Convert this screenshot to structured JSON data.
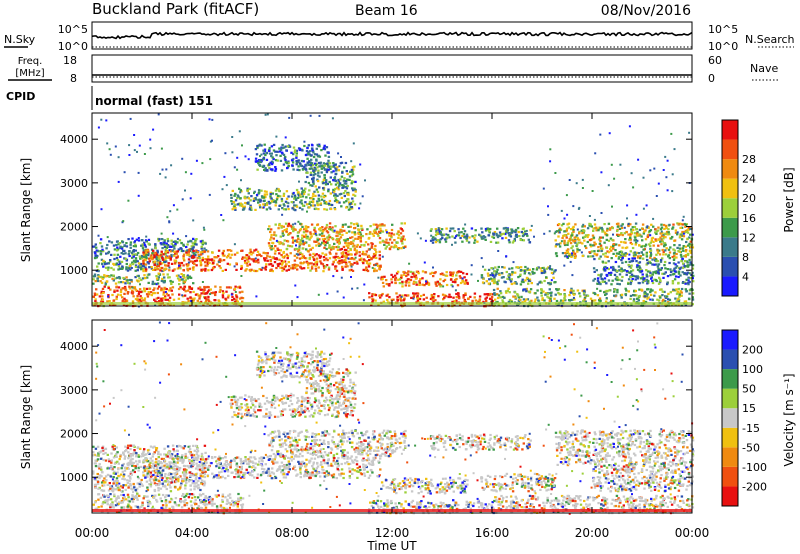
{
  "header": {
    "station": "Buckland Park (fitACF)",
    "beam": "Beam 16",
    "date": "08/Nov/2016"
  },
  "top_panels": {
    "nsky_label": "N.Sky",
    "nsky_ticks": [
      "10^5",
      "10^0"
    ],
    "nsearch_label": "N.Search",
    "nsearch_ticks": [
      "10^5",
      "10^0"
    ],
    "freq_label_1": "Freq.",
    "freq_label_2": "[MHz]",
    "freq_ticks": [
      "18",
      "8"
    ],
    "nave_label": "Nave",
    "nave_ticks": [
      "60",
      "0"
    ],
    "cpid_label": "CPID",
    "cpid_text": "normal (fast) 151"
  },
  "chart_data": [
    {
      "type": "heatmap",
      "name": "power",
      "ylabel": "Slant Range [km]",
      "yticks": [
        1000,
        2000,
        3000,
        4000
      ],
      "ylim": [
        180,
        4600
      ],
      "xlim_hours": [
        0,
        24
      ],
      "colorbar_label": "Power [dB]",
      "colorbar_ticks": [
        "4",
        "8",
        "12",
        "16",
        "20",
        "24",
        "28"
      ],
      "colorbar_colors": [
        "#1a1aff",
        "#2a4fb0",
        "#3a7a8a",
        "#3c9a4a",
        "#9ccf3a",
        "#f0c010",
        "#f08a10",
        "#f05010",
        "#e81010"
      ],
      "bands": [
        {
          "t0": 0.0,
          "t1": 6.0,
          "r0": 200,
          "r1": 650,
          "level": 0.8
        },
        {
          "t0": 0.0,
          "t1": 4.0,
          "r0": 700,
          "r1": 950,
          "level": 0.45
        },
        {
          "t0": 0.0,
          "t1": 3.0,
          "r0": 1000,
          "r1": 1300,
          "level": 0.35
        },
        {
          "t0": 0.0,
          "t1": 4.5,
          "r0": 1300,
          "r1": 1750,
          "level": 0.3
        },
        {
          "t0": 2.0,
          "t1": 11.5,
          "r0": 1000,
          "r1": 1500,
          "level": 0.8
        },
        {
          "t0": 7.0,
          "t1": 12.5,
          "r0": 1500,
          "r1": 2100,
          "level": 0.65
        },
        {
          "t0": 5.5,
          "t1": 10.5,
          "r0": 2400,
          "r1": 2900,
          "level": 0.4
        },
        {
          "t0": 8.5,
          "t1": 10.5,
          "r0": 2900,
          "r1": 3500,
          "level": 0.35
        },
        {
          "t0": 6.5,
          "t1": 9.5,
          "r0": 3300,
          "r1": 3900,
          "level": 0.25
        },
        {
          "t0": 11.0,
          "t1": 16.0,
          "r0": 200,
          "r1": 500,
          "level": 0.85
        },
        {
          "t0": 11.5,
          "t1": 15.0,
          "r0": 650,
          "r1": 1000,
          "level": 0.75
        },
        {
          "t0": 15.5,
          "t1": 18.5,
          "r0": 700,
          "r1": 1100,
          "level": 0.4
        },
        {
          "t0": 13.5,
          "t1": 17.5,
          "r0": 1650,
          "r1": 2000,
          "level": 0.35
        },
        {
          "t0": 16.0,
          "t1": 24.0,
          "r0": 200,
          "r1": 600,
          "level": 0.45
        },
        {
          "t0": 18.5,
          "t1": 24.0,
          "r0": 1300,
          "r1": 2100,
          "level": 0.55
        },
        {
          "t0": 20.0,
          "t1": 24.0,
          "r0": 700,
          "r1": 1300,
          "level": 0.3
        }
      ]
    },
    {
      "type": "heatmap",
      "name": "velocity",
      "xlabel": "Time UT",
      "ylabel": "Slant Range [km]",
      "yticks": [
        1000,
        2000,
        3000,
        4000
      ],
      "ylim": [
        180,
        4600
      ],
      "xlim_hours": [
        0,
        24
      ],
      "xticks": [
        "00:00",
        "04:00",
        "08:00",
        "12:00",
        "16:00",
        "20:00",
        "00:00"
      ],
      "colorbar_label": "Velocity [m s⁻¹]",
      "colorbar_ticks": [
        "-200",
        "-100",
        "-50",
        "-15",
        "15",
        "50",
        "100",
        "200"
      ],
      "colorbar_colors": [
        "#e81010",
        "#f05010",
        "#f08a10",
        "#f0c010",
        "#c8c8c8",
        "#9ccf3a",
        "#3c9a4a",
        "#2a4fb0",
        "#1a1aff"
      ],
      "bands": [
        {
          "t0": 0.0,
          "t1": 6.0,
          "r0": 200,
          "r1": 650,
          "level": 0.5
        },
        {
          "t0": 0.0,
          "t1": 4.5,
          "r0": 700,
          "r1": 1750,
          "level": 0.45
        },
        {
          "t0": 2.0,
          "t1": 11.5,
          "r0": 1000,
          "r1": 1500,
          "level": 0.5
        },
        {
          "t0": 7.0,
          "t1": 12.5,
          "r0": 1500,
          "r1": 2100,
          "level": 0.5
        },
        {
          "t0": 5.5,
          "t1": 10.5,
          "r0": 2400,
          "r1": 2900,
          "level": 0.4
        },
        {
          "t0": 8.5,
          "t1": 10.5,
          "r0": 2900,
          "r1": 3500,
          "level": 0.35
        },
        {
          "t0": 6.5,
          "t1": 9.5,
          "r0": 3300,
          "r1": 3900,
          "level": 0.6
        },
        {
          "t0": 11.0,
          "t1": 16.0,
          "r0": 200,
          "r1": 500,
          "level": 0.65
        },
        {
          "t0": 11.5,
          "t1": 15.0,
          "r0": 650,
          "r1": 1000,
          "level": 0.62
        },
        {
          "t0": 15.5,
          "t1": 18.5,
          "r0": 700,
          "r1": 1100,
          "level": 0.5
        },
        {
          "t0": 13.5,
          "t1": 17.5,
          "r0": 1650,
          "r1": 2000,
          "level": 0.5
        },
        {
          "t0": 16.0,
          "t1": 24.0,
          "r0": 200,
          "r1": 600,
          "level": 0.45
        },
        {
          "t0": 18.5,
          "t1": 24.0,
          "r0": 1300,
          "r1": 2100,
          "level": 0.5
        },
        {
          "t0": 20.0,
          "t1": 24.0,
          "r0": 700,
          "r1": 1300,
          "level": 0.5
        }
      ]
    }
  ]
}
